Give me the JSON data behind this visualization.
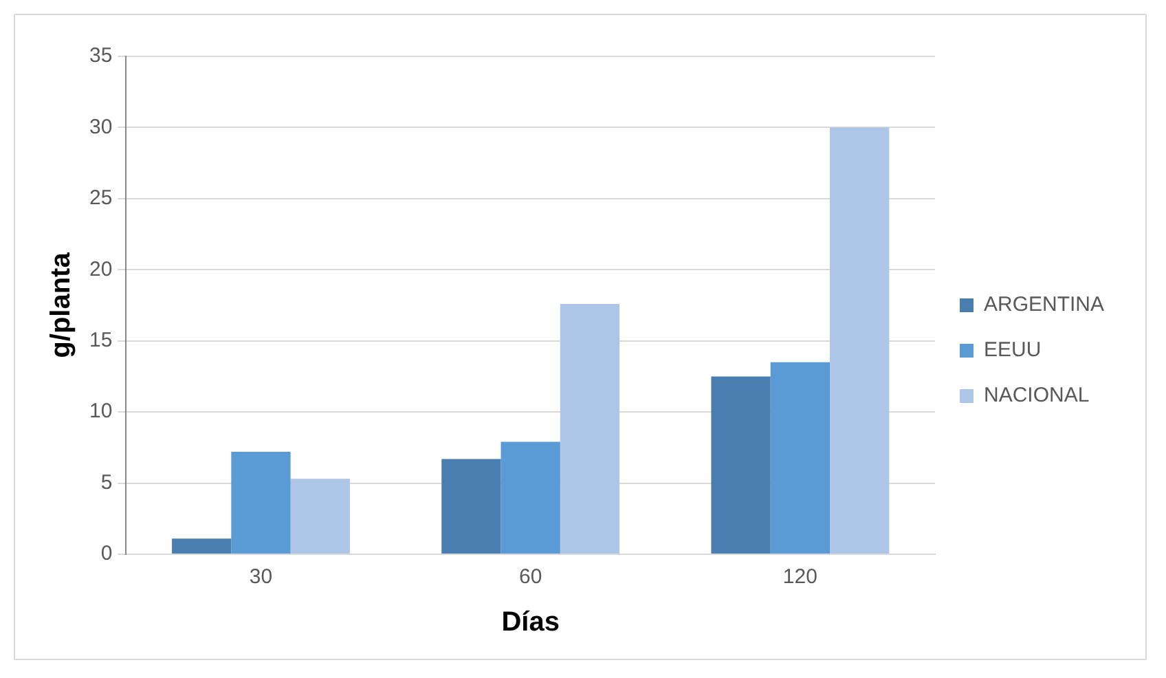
{
  "chart_data": {
    "type": "bar",
    "xlabel": "Días",
    "ylabel": "g/planta",
    "categories": [
      "30",
      "60",
      "120"
    ],
    "series": [
      {
        "name": "ARGENTINA",
        "color": "#4a7eb0",
        "values": [
          1.1,
          6.7,
          12.5
        ]
      },
      {
        "name": "EEUU",
        "color": "#5b9bd5",
        "values": [
          7.2,
          7.9,
          13.5
        ]
      },
      {
        "name": "NACIONAL",
        "color": "#adc5e6",
        "values": [
          5.3,
          17.6,
          30
        ]
      }
    ],
    "ylim": [
      0,
      35
    ],
    "yticks": [
      0,
      5,
      10,
      15,
      20,
      25,
      30,
      35
    ],
    "grid": "y",
    "legend": "right"
  }
}
